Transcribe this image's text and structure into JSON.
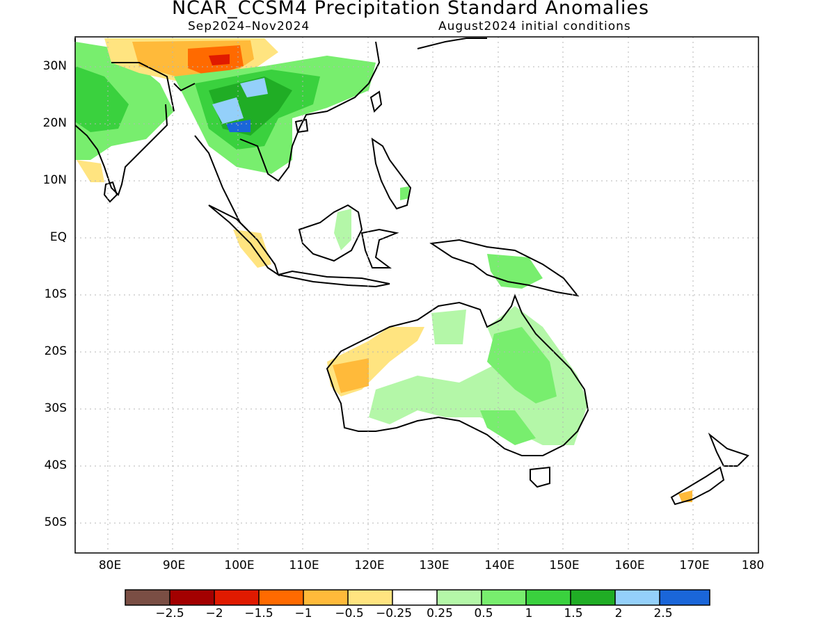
{
  "title": "NCAR_CCSM4 Precipitation Standard Anomalies",
  "subtitle_left": "Sep2024–Nov2024",
  "subtitle_right": "August2024 initial conditions",
  "map": {
    "lon_range": [
      75,
      180
    ],
    "lat_range": [
      -55,
      35
    ],
    "lat_ticks": [
      "30N",
      "20N",
      "10N",
      "EQ",
      "10S",
      "20S",
      "30S",
      "40S",
      "50S"
    ],
    "lon_ticks": [
      "80E",
      "90E",
      "100E",
      "110E",
      "120E",
      "130E",
      "140E",
      "150E",
      "160E",
      "170E",
      "180"
    ]
  },
  "legend": {
    "labels": [
      "−2.5",
      "−2",
      "−1.5",
      "−1",
      "−0.5",
      "−0.25",
      "0.25",
      "0.5",
      "1",
      "1.5",
      "2",
      "2.5"
    ],
    "colors": [
      "#7a4e44",
      "#a30000",
      "#e01a00",
      "#ff6a00",
      "#ffba3a",
      "#ffe480",
      "#ffffff",
      "#b4f7a8",
      "#78ee6e",
      "#3ad13e",
      "#20ad25",
      "#94d0fa",
      "#1a66d9"
    ]
  }
}
